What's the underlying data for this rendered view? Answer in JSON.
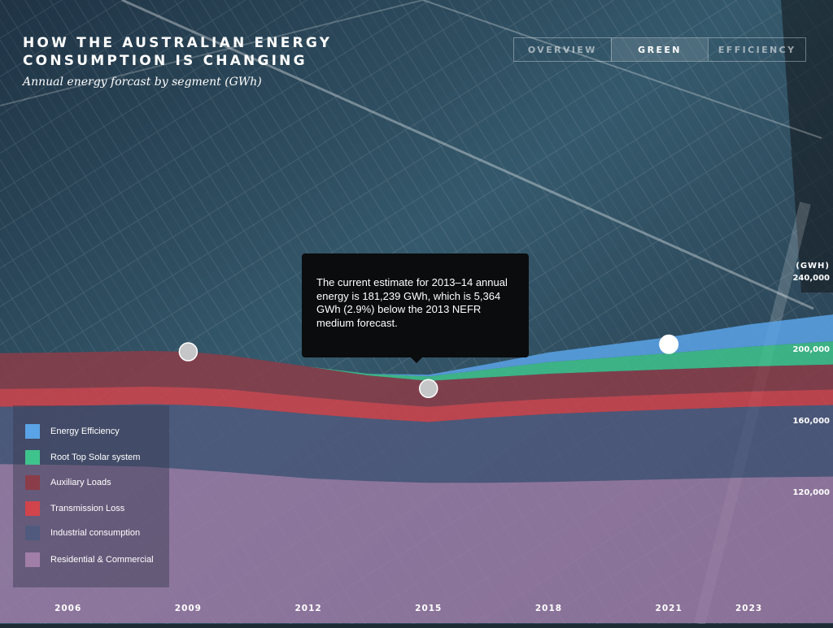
{
  "header": {
    "title_line1": "HOW THE AUSTRALIAN ENERGY",
    "title_line2": "CONSUMPTION IS CHANGING",
    "subtitle": "Annual energy forcast by segment (GWh)"
  },
  "tabs": [
    {
      "label": "OVERVIEW",
      "active": false
    },
    {
      "label": "GREEN",
      "active": true
    },
    {
      "label": "EFFICIENCY",
      "active": false
    }
  ],
  "tooltip": {
    "text": "The current estimate for 2013–14 annual energy is 181,239 GWh, which is 5,364 GWh (2.9%) below the 2013 NEFR medium forecast."
  },
  "legend": [
    {
      "label": "Energy Efficiency",
      "color": "#5aa3e6"
    },
    {
      "label": "Root Top Solar system",
      "color": "#3fc38c"
    },
    {
      "label": "Auxiliary Loads",
      "color": "#8a3d48"
    },
    {
      "label": "Transmission Loss",
      "color": "#d1444c"
    },
    {
      "label": "Industrial consumption",
      "color": "#4f5a7e"
    },
    {
      "label": "Residential & Commercial",
      "color": "#a07ea8"
    }
  ],
  "chart_data": {
    "type": "area",
    "ylabel": "(GWH)",
    "ytick_labels": [
      "240,000",
      "200,000",
      "160,000",
      "120,000"
    ],
    "yticks": [
      240000,
      200000,
      160000,
      120000
    ],
    "xtick_labels": [
      "2006",
      "2009",
      "2012",
      "2015",
      "2018",
      "2021",
      "2023"
    ],
    "xticks": [
      2006,
      2009,
      2012,
      2015,
      2018,
      2021,
      2023
    ],
    "x": [
      2004.3,
      2006,
      2008,
      2009,
      2010,
      2012,
      2013.5,
      2015,
      2016.5,
      2018,
      2021,
      2023,
      2025.1
    ],
    "series": [
      {
        "name": "Residential & Commercial",
        "color": "#a07ea8",
        "values": [
          89000,
          88500,
          87500,
          86000,
          84500,
          81000,
          79500,
          78500,
          78500,
          79000,
          80500,
          81500,
          82000
        ]
      },
      {
        "name": "Industrial consumption",
        "color": "#4f5a7e",
        "values": [
          32000,
          33000,
          35000,
          36000,
          36500,
          36000,
          35000,
          34000,
          36500,
          38000,
          39000,
          39500,
          40000
        ]
      },
      {
        "name": "Transmission Loss",
        "color": "#d1444c",
        "values": [
          10000,
          10000,
          9800,
          9800,
          9800,
          9500,
          9000,
          8500,
          8500,
          8500,
          8500,
          8600,
          8700
        ]
      },
      {
        "name": "Auxiliary Loads",
        "color": "#8a3d48",
        "values": [
          20000,
          20000,
          20000,
          20000,
          19000,
          17000,
          15000,
          14500,
          14000,
          14000,
          14000,
          14000,
          14000
        ]
      },
      {
        "name": "Root Top Solar system",
        "color": "#3fc38c",
        "values": [
          0,
          0,
          0,
          0,
          0,
          0,
          1000,
          2500,
          4500,
          6500,
          9000,
          11000,
          13000
        ]
      },
      {
        "name": "Energy Efficiency",
        "color": "#5aa3e6",
        "values": [
          0,
          0,
          0,
          0,
          0,
          0,
          0,
          1000,
          3000,
          5500,
          9000,
          12500,
          15000
        ]
      }
    ],
    "markers": [
      {
        "x": 2009,
        "y": 201800,
        "active": false
      },
      {
        "x": 2015,
        "y": 181239,
        "active": false
      },
      {
        "x": 2021,
        "y": 206000,
        "active": true
      }
    ],
    "ylim": [
      50000,
      265000
    ],
    "xlim": [
      2004.3,
      2025.1
    ]
  }
}
